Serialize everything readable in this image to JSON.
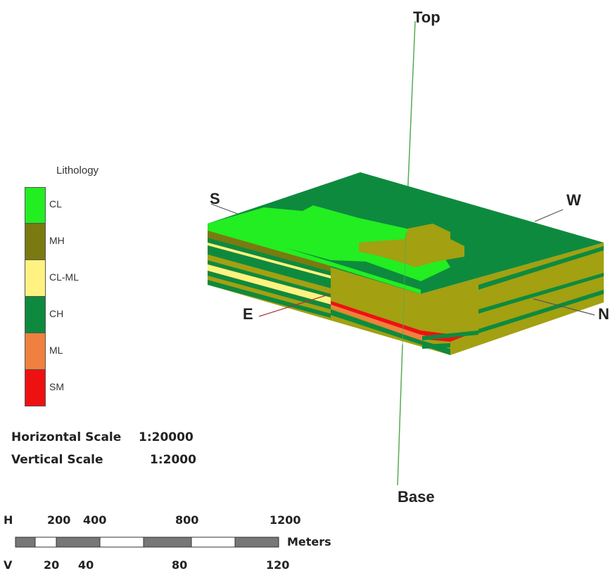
{
  "legend": {
    "title": "Lithology",
    "items": [
      {
        "label": "CL",
        "color": "#22ee22"
      },
      {
        "label": "MH",
        "color": "#7a7a10"
      },
      {
        "label": "CL-ML",
        "color": "#fff280"
      },
      {
        "label": "CH",
        "color": "#0e8a3e"
      },
      {
        "label": "ML",
        "color": "#f08040"
      },
      {
        "label": "SM",
        "color": "#ee1111"
      }
    ]
  },
  "scales": {
    "horizontal_label": "Horizontal Scale",
    "horizontal_value": "1:20000",
    "vertical_label": "Vertical Scale",
    "vertical_value": "1:2000"
  },
  "scale_bar": {
    "h_prefix": "H",
    "v_prefix": "V",
    "unit": "Meters",
    "h_ticks": [
      "200",
      "400",
      "800",
      "1200"
    ],
    "v_ticks": [
      "20",
      "40",
      "80",
      "120"
    ]
  },
  "axes": {
    "top": "Top",
    "base": "Base",
    "south": "S",
    "west": "W",
    "east": "E",
    "north": "N"
  }
}
